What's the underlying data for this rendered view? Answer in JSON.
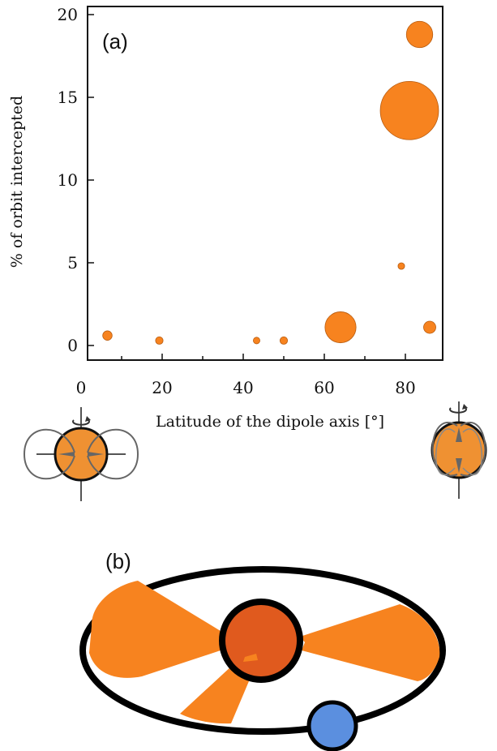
{
  "chart_data": {
    "type": "scatter",
    "panel_label": "(a)",
    "xlabel": "Latitude of the dipole axis [°]",
    "ylabel": "% of orbit intercepted",
    "xlim": [
      0,
      95
    ],
    "ylim": [
      -1,
      20.5
    ],
    "xticks": [
      0,
      20,
      40,
      60,
      80
    ],
    "yticks": [
      0,
      5,
      10,
      15,
      20
    ],
    "marker_color": "#f7831f",
    "marker_edge_color": "#b85c10",
    "points": [
      {
        "x": 6.5,
        "y": 0.6,
        "size": 1
      },
      {
        "x": 19.3,
        "y": 0.3,
        "size": 0.8
      },
      {
        "x": 43.3,
        "y": 0.3,
        "size": 0.7
      },
      {
        "x": 50.0,
        "y": 0.3,
        "size": 0.8
      },
      {
        "x": 64.0,
        "y": 1.1,
        "size": 3.3
      },
      {
        "x": 79.0,
        "y": 4.8,
        "size": 0.7
      },
      {
        "x": 81.0,
        "y": 14.2,
        "size": 6.2
      },
      {
        "x": 83.5,
        "y": 18.8,
        "size": 2.8
      },
      {
        "x": 86.0,
        "y": 1.1,
        "size": 1.3
      }
    ]
  },
  "panel_b": {
    "label": "(b)",
    "star_color": "#e05a1e",
    "beam_color": "#f7831f",
    "planet_color": "#5b8fdf"
  },
  "icons": {
    "dipole_equatorial": "dipole-equatorial-icon",
    "dipole_polar": "dipole-polar-icon"
  }
}
